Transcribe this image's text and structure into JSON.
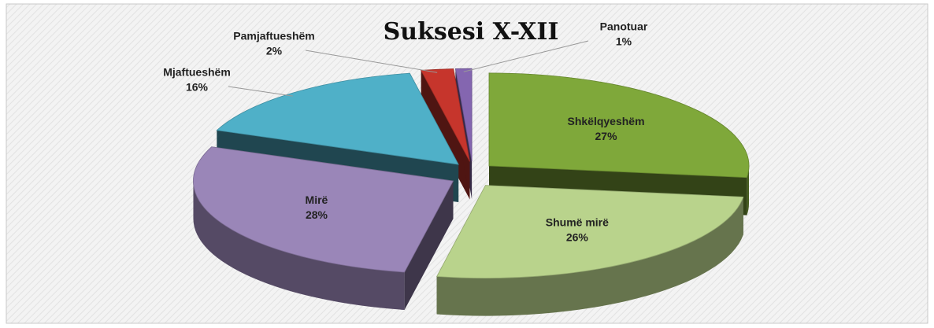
{
  "chart_data": {
    "type": "pie3d",
    "title": "Suksesi X-XII",
    "categories": [
      "Shkëlqyeshëm",
      "Shumë mirë",
      "Mirë",
      "Mjaftueshëm",
      "Pamjaftueshëm",
      "Panotuar"
    ],
    "values": [
      27,
      26,
      28,
      16,
      2,
      1
    ],
    "value_labels": [
      "27%",
      "26%",
      "28%",
      "16%",
      "2%",
      "1%"
    ],
    "colors": [
      "#7fa83a",
      "#b9d38c",
      "#9a86b8",
      "#4fb0c8",
      "#c6352c",
      "#8466b0"
    ]
  }
}
